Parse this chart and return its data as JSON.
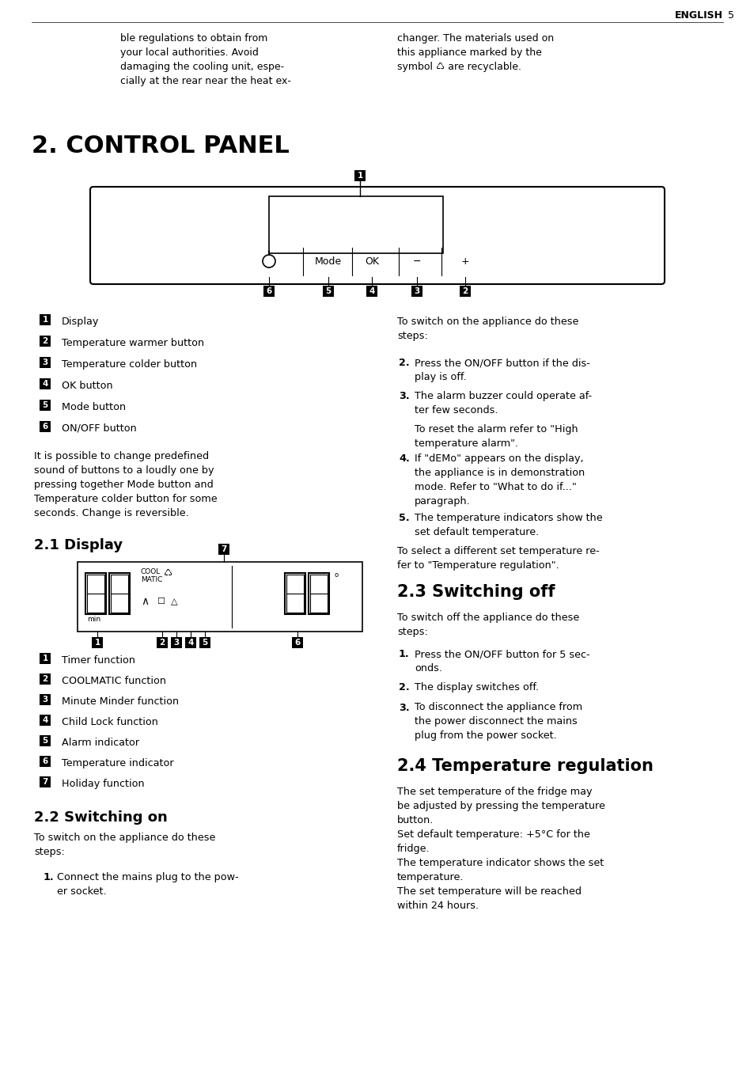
{
  "page_bg": "#ffffff",
  "top_left_text": "ble regulations to obtain from\nyour local authorities. Avoid\ndamaging the cooling unit, espe-\ncially at the rear near the heat ex-",
  "top_right_text": "changer. The materials used on\nthis appliance marked by the\nsymbol ♺ are recyclable.",
  "section_title": "2. CONTROL PANEL",
  "legend_items_left": [
    [
      "1",
      "Display"
    ],
    [
      "2",
      "Temperature warmer button"
    ],
    [
      "3",
      "Temperature colder button"
    ],
    [
      "4",
      "OK button"
    ],
    [
      "5",
      "Mode button"
    ],
    [
      "6",
      "ON/OFF button"
    ]
  ],
  "legend_extra_text": "It is possible to change predefined\nsound of buttons to a loudly one by\npressing together Mode button and\nTemperature colder button for some\nseconds. Change is reversible.",
  "switching_on_intro_right": "2.",
  "right_col_items": [
    [
      "2.",
      "Press the ON/OFF button if the dis-\nplay is off."
    ],
    [
      "3.",
      "The alarm buzzer could operate af-\nter few seconds."
    ],
    [
      "",
      "To reset the alarm refer to \"High\ntemperature alarm\"."
    ],
    [
      "4.",
      "If \"dEMo\" appears on the display,\nthe appliance is in demonstration\nmode. Refer to \"What to do if...\"\nparagraph."
    ],
    [
      "5.",
      "The temperature indicators show the\nset default temperature."
    ]
  ],
  "right_col_footer": "To select a different set temperature re-\nfer to \"Temperature regulation\".",
  "subsection_display": "2.1 Display",
  "display_legend": [
    [
      "1",
      "Timer function"
    ],
    [
      "2",
      "COOLMATIC function"
    ],
    [
      "3",
      "Minute Minder function"
    ],
    [
      "4",
      "Child Lock function"
    ],
    [
      "5",
      "Alarm indicator"
    ],
    [
      "6",
      "Temperature indicator"
    ],
    [
      "7",
      "Holiday function"
    ]
  ],
  "switching_on_title": "2.2 Switching on",
  "switching_on_intro": "To switch on the appliance do these\nsteps:",
  "switching_on_item1": "Connect the mains plug to the pow-\ner socket.",
  "switching_off_title": "2.3 Switching off",
  "switching_off_intro": "To switch off the appliance do these\nsteps:",
  "switching_off_items": [
    [
      "1.",
      "Press the ON/OFF button for 5 sec-\nonds."
    ],
    [
      "2.",
      "The display switches off."
    ],
    [
      "3.",
      "To disconnect the appliance from\nthe power disconnect the mains\nplug from the power socket."
    ]
  ],
  "temp_reg_title": "2.4 Temperature regulation",
  "temp_reg_text": "The set temperature of the fridge may\nbe adjusted by pressing the temperature\nbutton.\nSet default temperature: +5°C for the\nfridge.\nThe temperature indicator shows the set\ntemperature.\nThe set temperature will be reached\nwithin 24 hours."
}
